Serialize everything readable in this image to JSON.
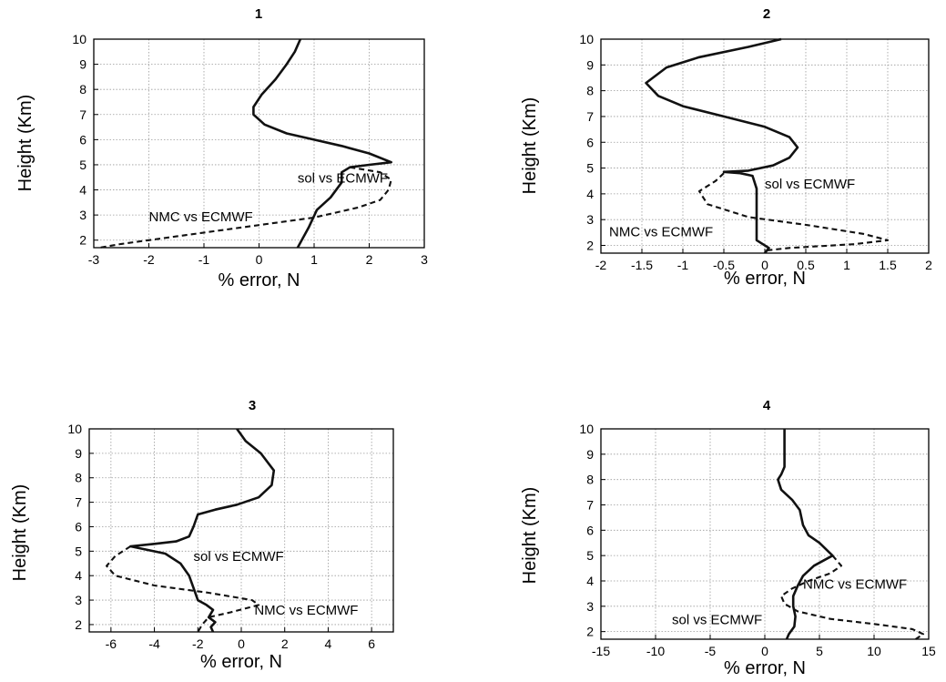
{
  "chart_data": [
    {
      "type": "line",
      "title": "1",
      "xlabel": "% error, N",
      "ylabel": "Height (Km)",
      "xlim": [
        -3,
        3
      ],
      "ylim": [
        1.7,
        10
      ],
      "xticks": [
        "-3",
        "-2",
        "-1",
        "0",
        "1",
        "2",
        "3"
      ],
      "yticks": [
        "2",
        "3",
        "4",
        "5",
        "6",
        "7",
        "8",
        "9",
        "10"
      ],
      "grid": true,
      "annotations": [
        {
          "text": "sol vs ECMWF",
          "x": 0.7,
          "y": 4.3
        },
        {
          "text": "NMC vs ECMWF",
          "x": -2.0,
          "y": 2.75
        }
      ],
      "series": [
        {
          "style": "solid",
          "points": [
            [
              0.75,
              10
            ],
            [
              0.65,
              9.5
            ],
            [
              0.5,
              9
            ],
            [
              0.3,
              8.4
            ],
            [
              0.05,
              7.8
            ],
            [
              -0.1,
              7.3
            ],
            [
              -0.1,
              7.0
            ],
            [
              0.1,
              6.6
            ],
            [
              0.5,
              6.25
            ],
            [
              1.0,
              6.0
            ],
            [
              1.5,
              5.75
            ],
            [
              2.0,
              5.45
            ],
            [
              2.4,
              5.1
            ],
            [
              2.0,
              5.0
            ],
            [
              1.65,
              4.9
            ],
            [
              1.5,
              4.7
            ],
            [
              1.5,
              4.3
            ],
            [
              1.3,
              3.7
            ],
            [
              1.05,
              3.2
            ],
            [
              0.9,
              2.5
            ],
            [
              0.8,
              2.1
            ],
            [
              0.7,
              1.7
            ]
          ]
        },
        {
          "style": "dashed",
          "points": [
            [
              1.65,
              4.9
            ],
            [
              2.2,
              4.7
            ],
            [
              2.4,
              4.4
            ],
            [
              2.35,
              4.0
            ],
            [
              2.2,
              3.6
            ],
            [
              1.8,
              3.3
            ],
            [
              1.0,
              2.9
            ],
            [
              -0.5,
              2.45
            ],
            [
              -1.5,
              2.15
            ],
            [
              -2.5,
              1.85
            ],
            [
              -2.9,
              1.7
            ]
          ]
        }
      ]
    },
    {
      "type": "line",
      "title": "2",
      "xlabel": "% error, N",
      "ylabel": "Height (Km)",
      "xlim": [
        -2,
        2
      ],
      "ylim": [
        1.7,
        10
      ],
      "xticks": [
        "-2",
        "-1.5",
        "-1",
        "-0.5",
        "0",
        "0.5",
        "1",
        "1.5",
        "2"
      ],
      "yticks": [
        "2",
        "3",
        "4",
        "5",
        "6",
        "7",
        "8",
        "9",
        "10"
      ],
      "grid": true,
      "annotations": [
        {
          "text": "sol vs ECMWF",
          "x": 0.0,
          "y": 4.2
        },
        {
          "text": "NMC vs ECMWF",
          "x": -1.9,
          "y": 2.35
        }
      ],
      "series": [
        {
          "style": "solid",
          "points": [
            [
              0.2,
              10
            ],
            [
              -0.2,
              9.7
            ],
            [
              -0.8,
              9.3
            ],
            [
              -1.2,
              8.9
            ],
            [
              -1.45,
              8.3
            ],
            [
              -1.3,
              7.8
            ],
            [
              -1.0,
              7.4
            ],
            [
              -0.5,
              7.0
            ],
            [
              0.0,
              6.6
            ],
            [
              0.3,
              6.2
            ],
            [
              0.4,
              5.8
            ],
            [
              0.3,
              5.4
            ],
            [
              0.1,
              5.1
            ],
            [
              -0.2,
              4.9
            ],
            [
              -0.5,
              4.85
            ],
            [
              -0.3,
              4.8
            ],
            [
              -0.15,
              4.7
            ],
            [
              -0.1,
              4.2
            ],
            [
              -0.1,
              3.5
            ],
            [
              -0.1,
              2.8
            ],
            [
              -0.1,
              2.2
            ],
            [
              -0.05,
              2.1
            ],
            [
              0.05,
              1.9
            ],
            [
              0.0,
              1.7
            ]
          ]
        },
        {
          "style": "dashed",
          "points": [
            [
              -0.5,
              4.8
            ],
            [
              -0.6,
              4.5
            ],
            [
              -0.8,
              4.1
            ],
            [
              -0.7,
              3.6
            ],
            [
              -0.2,
              3.1
            ],
            [
              0.5,
              2.8
            ],
            [
              1.2,
              2.45
            ],
            [
              1.5,
              2.2
            ],
            [
              1.1,
              2.05
            ],
            [
              0.3,
              1.9
            ],
            [
              0.0,
              1.8
            ],
            [
              0.0,
              1.7
            ]
          ]
        }
      ]
    },
    {
      "type": "line",
      "title": "3",
      "xlabel": "% error, N",
      "ylabel": "Height (Km)",
      "xlim": [
        -7,
        7
      ],
      "ylim": [
        1.7,
        10
      ],
      "xticks": [
        "-6",
        "-4",
        "-2",
        "0",
        "2",
        "4",
        "6"
      ],
      "yticks": [
        "2",
        "3",
        "4",
        "5",
        "6",
        "7",
        "8",
        "9",
        "10"
      ],
      "grid": true,
      "annotations": [
        {
          "text": "sol vs ECMWF",
          "x": -2.2,
          "y": 4.6
        },
        {
          "text": "NMC vs ECMWF",
          "x": 0.6,
          "y": 2.4
        }
      ],
      "series": [
        {
          "style": "solid",
          "points": [
            [
              -0.2,
              10
            ],
            [
              0.2,
              9.5
            ],
            [
              0.9,
              9.0
            ],
            [
              1.5,
              8.3
            ],
            [
              1.4,
              7.7
            ],
            [
              0.8,
              7.2
            ],
            [
              -0.2,
              6.9
            ],
            [
              -1.2,
              6.7
            ],
            [
              -2.0,
              6.5
            ],
            [
              -2.2,
              6.0
            ],
            [
              -2.4,
              5.6
            ],
            [
              -3.0,
              5.4
            ],
            [
              -4.0,
              5.3
            ],
            [
              -5.1,
              5.2
            ],
            [
              -3.5,
              4.9
            ],
            [
              -2.8,
              4.5
            ],
            [
              -2.4,
              4.0
            ],
            [
              -2.2,
              3.5
            ],
            [
              -2.0,
              3.0
            ],
            [
              -1.6,
              2.8
            ],
            [
              -1.3,
              2.6
            ],
            [
              -1.5,
              2.3
            ],
            [
              -1.2,
              2.1
            ],
            [
              -1.4,
              1.9
            ],
            [
              -1.3,
              1.7
            ]
          ]
        },
        {
          "style": "dashed",
          "points": [
            [
              -5.1,
              5.2
            ],
            [
              -5.8,
              4.8
            ],
            [
              -6.2,
              4.4
            ],
            [
              -5.8,
              4.0
            ],
            [
              -4.0,
              3.6
            ],
            [
              -1.5,
              3.3
            ],
            [
              0.5,
              3.0
            ],
            [
              0.8,
              2.8
            ],
            [
              -0.5,
              2.5
            ],
            [
              -1.5,
              2.3
            ],
            [
              -1.8,
              2.0
            ],
            [
              -2.0,
              1.7
            ]
          ]
        }
      ]
    },
    {
      "type": "line",
      "title": "4",
      "xlabel": "% error, N",
      "ylabel": "Height (Km)",
      "xlim": [
        -15,
        15
      ],
      "ylim": [
        1.7,
        10
      ],
      "xticks": [
        "-15",
        "-10",
        "-5",
        "0",
        "5",
        "10",
        "15"
      ],
      "yticks": [
        "2",
        "3",
        "4",
        "5",
        "6",
        "7",
        "8",
        "9",
        "10"
      ],
      "grid": true,
      "annotations": [
        {
          "text": "NMC vs ECMWF",
          "x": 3.5,
          "y": 3.7
        },
        {
          "text": "sol vs ECMWF",
          "x": -8.5,
          "y": 2.3
        }
      ],
      "series": [
        {
          "style": "solid",
          "points": [
            [
              1.8,
              10
            ],
            [
              1.8,
              9.0
            ],
            [
              1.8,
              8.5
            ],
            [
              1.5,
              8.2
            ],
            [
              1.2,
              8.0
            ],
            [
              1.5,
              7.6
            ],
            [
              2.5,
              7.2
            ],
            [
              3.2,
              6.8
            ],
            [
              3.5,
              6.2
            ],
            [
              4.0,
              5.8
            ],
            [
              5.0,
              5.5
            ],
            [
              6.2,
              5.0
            ],
            [
              4.5,
              4.6
            ],
            [
              3.5,
              4.2
            ],
            [
              3.0,
              3.8
            ],
            [
              2.6,
              3.4
            ],
            [
              2.6,
              3.0
            ],
            [
              2.8,
              2.6
            ],
            [
              2.7,
              2.2
            ],
            [
              2.2,
              1.9
            ],
            [
              2.0,
              1.7
            ]
          ]
        },
        {
          "style": "dashed",
          "points": [
            [
              6.2,
              5.0
            ],
            [
              7.0,
              4.6
            ],
            [
              6.0,
              4.3
            ],
            [
              4.0,
              4.0
            ],
            [
              2.5,
              3.7
            ],
            [
              1.5,
              3.4
            ],
            [
              1.8,
              3.1
            ],
            [
              3.0,
              2.8
            ],
            [
              6.0,
              2.5
            ],
            [
              10.0,
              2.3
            ],
            [
              13.5,
              2.1
            ],
            [
              14.5,
              1.9
            ],
            [
              13.8,
              1.7
            ]
          ]
        }
      ]
    }
  ]
}
